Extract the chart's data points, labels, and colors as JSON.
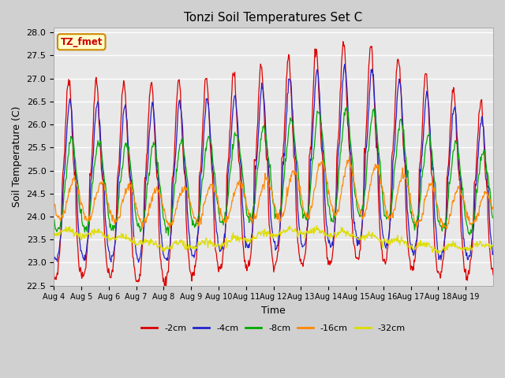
{
  "title": "Tonzi Soil Temperatures Set C",
  "xlabel": "Time",
  "ylabel": "Soil Temperature (C)",
  "annotation_text": "TZ_fmet",
  "ylim": [
    22.5,
    28.1
  ],
  "fig_facecolor": "#d0d0d0",
  "plot_facecolor": "#e8e8e8",
  "series_colors": {
    "-2cm": "#dd0000",
    "-4cm": "#2222cc",
    "-8cm": "#00aa00",
    "-16cm": "#ff8800",
    "-32cm": "#dddd00"
  },
  "series_lw": 0.9,
  "xtick_labels": [
    "Aug 4",
    "Aug 5",
    "Aug 6",
    "Aug 7",
    "Aug 8",
    "Aug 9",
    "Aug 10",
    "Aug 11",
    "Aug 12",
    "Aug 13",
    "Aug 14",
    "Aug 15",
    "Aug 16",
    "Aug 17",
    "Aug 18",
    "Aug 19"
  ],
  "n_days": 16,
  "samples_per_day": 48,
  "grid_color": "white",
  "grid_lw": 1.0
}
